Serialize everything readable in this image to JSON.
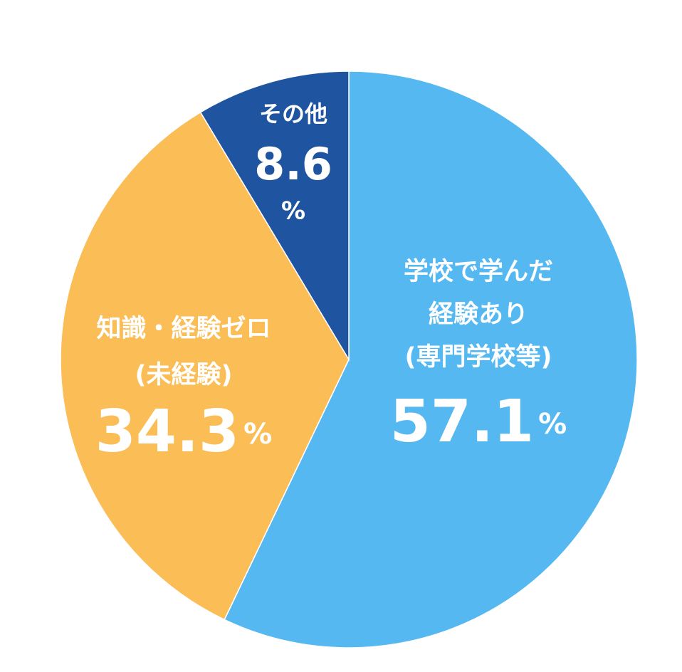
{
  "chart_data": {
    "type": "pie",
    "labels": [
      [
        "学校で学んだ",
        "経験あり",
        "(専門学校等)"
      ],
      [
        "知識・経験ゼロ",
        "(未経験)"
      ],
      [
        "その他"
      ]
    ],
    "values": [
      57.1,
      34.3,
      8.6
    ],
    "unit": "%",
    "colors": [
      "#55b8f1",
      "#fbbd56",
      "#1f54a0"
    ]
  }
}
